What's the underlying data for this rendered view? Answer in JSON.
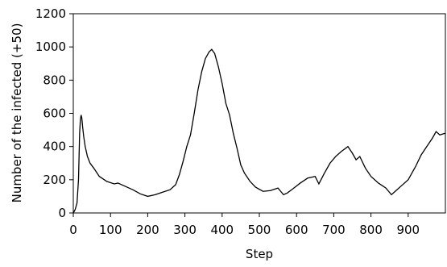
{
  "chart_data": {
    "type": "line",
    "title": "",
    "xlabel": "Step",
    "ylabel": "Number of the infected (+50)",
    "xlim": [
      0,
      1000
    ],
    "ylim": [
      0,
      1200
    ],
    "xticks": [
      0,
      100,
      200,
      300,
      400,
      500,
      600,
      700,
      800,
      900
    ],
    "yticks": [
      0,
      200,
      400,
      600,
      800,
      1000,
      1200
    ],
    "grid": false,
    "legend": "none",
    "line_color": "#000000",
    "series": [
      {
        "x": [
          0,
          5,
          10,
          14,
          17,
          19,
          21,
          23,
          25,
          28,
          32,
          38,
          45,
          55,
          70,
          90,
          110,
          120,
          140,
          160,
          180,
          200,
          220,
          240,
          260,
          275,
          285,
          295,
          305,
          315,
          325,
          335,
          345,
          355,
          365,
          372,
          380,
          390,
          400,
          410,
          420,
          430,
          440,
          450,
          460,
          475,
          490,
          510,
          530,
          550,
          565,
          575,
          590,
          610,
          630,
          650,
          660,
          675,
          690,
          705,
          720,
          738,
          750,
          760,
          770,
          785,
          800,
          820,
          840,
          855,
          865,
          880,
          900,
          920,
          935,
          950,
          965,
          975,
          985,
          999
        ],
        "y": [
          0,
          20,
          60,
          200,
          480,
          560,
          590,
          570,
          520,
          460,
          400,
          340,
          300,
          270,
          220,
          190,
          175,
          180,
          160,
          140,
          115,
          100,
          110,
          125,
          140,
          170,
          230,
          310,
          400,
          470,
          600,
          740,
          850,
          930,
          970,
          985,
          960,
          880,
          780,
          660,
          590,
          480,
          390,
          290,
          240,
          190,
          155,
          130,
          135,
          150,
          110,
          120,
          145,
          180,
          210,
          220,
          175,
          240,
          300,
          340,
          370,
          400,
          360,
          320,
          340,
          270,
          220,
          180,
          150,
          110,
          130,
          160,
          200,
          280,
          350,
          400,
          450,
          490,
          470,
          480
        ]
      }
    ]
  }
}
